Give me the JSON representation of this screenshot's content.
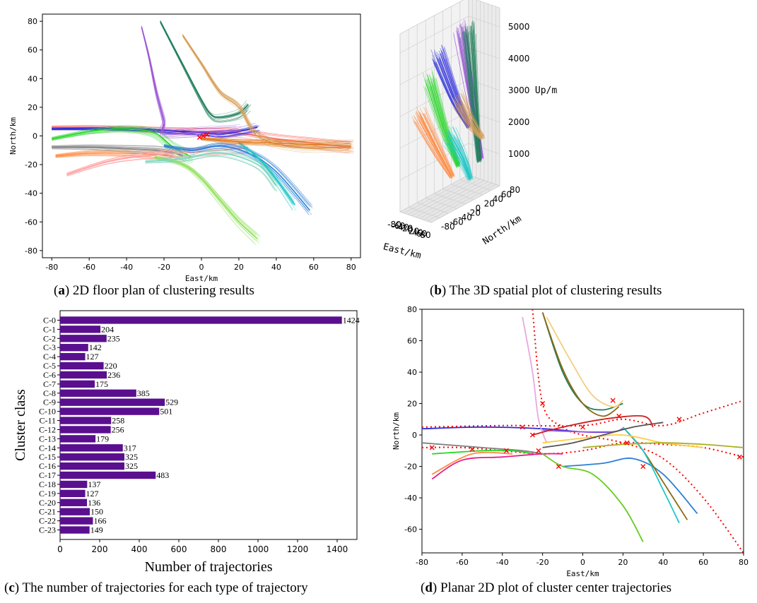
{
  "chart_data": [
    {
      "id": "a",
      "type": "line",
      "xlabel": "East/km",
      "ylabel": "North/km",
      "xlim": [
        -85,
        85
      ],
      "ylim": [
        -85,
        85
      ],
      "xticks": [
        -80,
        -60,
        -40,
        -20,
        0,
        20,
        40,
        60,
        80
      ],
      "yticks": [
        -80,
        -60,
        -40,
        -20,
        0,
        20,
        40,
        60,
        80
      ],
      "caption_letter": "a",
      "caption_text": "2D floor plan of clustering results",
      "series": [
        {
          "color": "#ff6f6f",
          "x": [
            -80,
            -60,
            -40,
            -20,
            0,
            20,
            40,
            60,
            80
          ],
          "y": [
            6,
            6,
            5,
            4,
            3,
            2,
            -2,
            -5,
            -8
          ]
        },
        {
          "color": "#2b2bdc",
          "x": [
            -80,
            -40,
            0,
            10,
            20,
            30
          ],
          "y": [
            5,
            5,
            2,
            1,
            3,
            6
          ]
        },
        {
          "color": "#2bd62b",
          "x": [
            -80,
            -60,
            -40,
            -25,
            -15,
            -5
          ],
          "y": [
            -2,
            3,
            5,
            2,
            -8,
            -15
          ]
        },
        {
          "color": "#ff8c44",
          "x": [
            -78,
            -60,
            -40,
            -25,
            -15
          ],
          "y": [
            -14,
            -12,
            -12,
            -13,
            -14
          ]
        },
        {
          "color": "#7f7f7f",
          "x": [
            -80,
            -60,
            -40,
            -25,
            -15,
            -10
          ],
          "y": [
            -8,
            -8,
            -9,
            -10,
            -12,
            -14
          ]
        },
        {
          "color": "#9b55d6",
          "x": [
            -32,
            -28,
            -24,
            -20,
            -20,
            0,
            20
          ],
          "y": [
            76,
            55,
            30,
            10,
            2,
            3,
            4
          ]
        },
        {
          "color": "#1f7f5a",
          "x": [
            -22,
            -10,
            0,
            5,
            10,
            20,
            25
          ],
          "y": [
            80,
            50,
            25,
            15,
            13,
            16,
            22
          ]
        },
        {
          "color": "#d9a05a",
          "x": [
            -10,
            0,
            10,
            20,
            30,
            50,
            80
          ],
          "y": [
            70,
            50,
            30,
            20,
            0,
            -8,
            -8
          ]
        },
        {
          "color": "#ff9ea0",
          "x": [
            -72,
            -50,
            -30,
            -10,
            10,
            25
          ],
          "y": [
            -27,
            -18,
            -14,
            -12,
            -10,
            -8
          ]
        },
        {
          "color": "#2b7fd6",
          "x": [
            -20,
            -5,
            10,
            25,
            40,
            58
          ],
          "y": [
            -7,
            -10,
            -7,
            -12,
            -25,
            -52
          ]
        },
        {
          "color": "#8fe05a",
          "x": [
            -25,
            -10,
            0,
            10,
            20,
            30
          ],
          "y": [
            -15,
            -20,
            -30,
            -45,
            -60,
            -72
          ]
        },
        {
          "color": "#20c6c6",
          "x": [
            20,
            30,
            40,
            50
          ],
          "y": [
            -5,
            -15,
            -30,
            -48
          ]
        },
        {
          "color": "#e07a1f",
          "x": [
            0,
            20,
            40,
            60,
            80
          ],
          "y": [
            -2,
            -4,
            -5,
            -6,
            -7
          ]
        },
        {
          "color": "#7fd6c0",
          "x": [
            -30,
            -10,
            10,
            30,
            40
          ],
          "y": [
            -18,
            -16,
            -12,
            -20,
            -35
          ]
        }
      ],
      "markers": [
        {
          "color": "#ff0000",
          "x": [
            -1,
            1,
            3
          ],
          "y": [
            -1,
            0,
            1
          ]
        }
      ]
    },
    {
      "id": "b",
      "type": "line",
      "xlabel": "East/km",
      "ylabel": "North/km",
      "zlabel": "Up/m",
      "xticks": [
        -80,
        -60,
        -40,
        -20,
        0,
        20,
        40,
        60,
        80
      ],
      "yticks": [
        -80,
        -60,
        -40,
        -20,
        0,
        20,
        40,
        60,
        80
      ],
      "zticks": [
        1000,
        2000,
        3000,
        4000,
        5000
      ],
      "caption_letter": "b",
      "caption_text": "The 3D spatial plot of clustering results",
      "bundles": [
        {
          "color": "#2b2bdc",
          "east": [
            -60,
            -20,
            10
          ],
          "north": [
            0,
            20,
            40
          ],
          "up": [
            4400,
            3000,
            2000
          ]
        },
        {
          "color": "#ff8c44",
          "east": [
            -70,
            -40,
            -10
          ],
          "north": [
            -40,
            -10,
            10
          ],
          "up": [
            2800,
            1500,
            600
          ]
        },
        {
          "color": "#2bd62b",
          "east": [
            -60,
            -30,
            0
          ],
          "north": [
            -20,
            0,
            20
          ],
          "up": [
            3800,
            2200,
            900
          ]
        },
        {
          "color": "#9b55d6",
          "east": [
            10,
            20,
            30
          ],
          "north": [
            20,
            40,
            60
          ],
          "up": [
            5200,
            3000,
            900
          ]
        },
        {
          "color": "#1f7f5a",
          "east": [
            30,
            35,
            40
          ],
          "north": [
            30,
            40,
            50
          ],
          "up": [
            5200,
            3000,
            900
          ]
        },
        {
          "color": "#d9a05a",
          "east": [
            50,
            65,
            80
          ],
          "north": [
            0,
            20,
            40
          ],
          "up": [
            3200,
            2400,
            1800
          ]
        },
        {
          "color": "#20c6c6",
          "east": [
            0,
            20,
            40
          ],
          "north": [
            0,
            20,
            30
          ],
          "up": [
            2000,
            1200,
            500
          ]
        }
      ]
    },
    {
      "id": "c",
      "type": "bar",
      "orientation": "horizontal",
      "xlabel": "Number of trajectories",
      "ylabel": "Cluster class",
      "xlim": [
        0,
        1500
      ],
      "xticks": [
        0,
        200,
        400,
        600,
        800,
        1000,
        1200,
        1400
      ],
      "bar_color": "#5a0f8f",
      "caption_letter": "c",
      "caption_text": "The number of trajectories for each type of trajectory",
      "categories": [
        "C-0",
        "C-1",
        "C-2",
        "C-3",
        "C-4",
        "C-5",
        "C-6",
        "C-7",
        "C-8",
        "C-9",
        "C-10",
        "C-11",
        "C-12",
        "C-13",
        "C-14",
        "C-15",
        "C-16",
        "C-17",
        "C-18",
        "C-19",
        "C-20",
        "C-21",
        "C-22",
        "C-23"
      ],
      "values": [
        1424,
        204,
        235,
        142,
        127,
        220,
        236,
        175,
        385,
        529,
        501,
        258,
        256,
        179,
        317,
        325,
        325,
        483,
        137,
        127,
        136,
        150,
        166,
        149
      ],
      "value_labels": [
        "1424",
        "204",
        "235",
        "142",
        "127",
        "220",
        "236",
        "175",
        "385",
        "529",
        "501",
        "258",
        "256",
        "179",
        "317",
        "325",
        "325",
        "483",
        "137",
        "127",
        "136",
        "150",
        "166",
        "149"
      ]
    },
    {
      "id": "d",
      "type": "line",
      "xlabel": "East/km",
      "ylabel": "North/km",
      "xlim": [
        -80,
        80
      ],
      "ylim": [
        -75,
        80
      ],
      "xticks": [
        -80,
        -60,
        -40,
        -20,
        0,
        20,
        40,
        60,
        80
      ],
      "yticks": [
        -60,
        -40,
        -20,
        0,
        20,
        40,
        60,
        80
      ],
      "caption_letter": "d",
      "caption_text": "Planar 2D plot of cluster center trajectories",
      "series": [
        {
          "color": "#ff0000",
          "dashed": true,
          "x": [
            -25,
            -20,
            -10,
            0,
            20,
            40,
            60,
            80
          ],
          "y": [
            80,
            20,
            5,
            0,
            -5,
            -15,
            -40,
            -75
          ]
        },
        {
          "color": "#ff0000",
          "dashed": true,
          "x": [
            -80,
            -60,
            -40,
            -20,
            0,
            20,
            40,
            60,
            80
          ],
          "y": [
            -8,
            -8,
            -10,
            -12,
            -10,
            -5,
            -6,
            -8,
            -14
          ]
        },
        {
          "color": "#ff0000",
          "dashed": true,
          "x": [
            -80,
            -40,
            0,
            20,
            40,
            60,
            80
          ],
          "y": [
            5,
            6,
            6,
            10,
            6,
            14,
            22
          ]
        },
        {
          "color": "#2b2bdc",
          "x": [
            -80,
            -50,
            -20,
            0,
            15,
            20
          ],
          "y": [
            4,
            5,
            4,
            2,
            2,
            4
          ]
        },
        {
          "color": "#9b55d6",
          "x": [
            -20,
            0,
            15
          ],
          "y": [
            3,
            2,
            2
          ]
        },
        {
          "color": "#7f7f7f",
          "x": [
            -80,
            -50,
            -30,
            -20
          ],
          "y": [
            -5,
            -8,
            -10,
            -12
          ]
        },
        {
          "color": "#2bd62b",
          "x": [
            -75,
            -50,
            -35,
            -25
          ],
          "y": [
            -12,
            -10,
            -10,
            -12
          ]
        },
        {
          "color": "#ff8c44",
          "x": [
            -75,
            -55,
            -35
          ],
          "y": [
            -25,
            -12,
            -12
          ]
        },
        {
          "color": "#e61e8c",
          "x": [
            -75,
            -60,
            -40,
            -20,
            -10
          ],
          "y": [
            -28,
            -16,
            -14,
            -12,
            -12
          ]
        },
        {
          "color": "#e8a8e0",
          "x": [
            -30,
            -25,
            -22,
            -18
          ],
          "y": [
            75,
            40,
            10,
            -5
          ]
        },
        {
          "color": "#1f7f5a",
          "x": [
            -20,
            -10,
            0,
            10,
            20
          ],
          "y": [
            78,
            40,
            20,
            16,
            20
          ]
        },
        {
          "color": "#f0d080",
          "x": [
            -18,
            -5,
            5,
            15,
            20
          ],
          "y": [
            75,
            45,
            25,
            18,
            22
          ]
        },
        {
          "color": "#8b6914",
          "x": [
            -20,
            -10,
            0,
            10,
            18
          ],
          "y": [
            78,
            42,
            20,
            12,
            18
          ]
        },
        {
          "color": "#2b7fd6",
          "x": [
            -10,
            10,
            25,
            40,
            57
          ],
          "y": [
            -20,
            -18,
            -15,
            -25,
            -50
          ]
        },
        {
          "color": "#8b6914",
          "x": [
            20,
            30,
            40,
            52
          ],
          "y": [
            5,
            -10,
            -30,
            -54
          ]
        },
        {
          "color": "#20c6c6",
          "x": [
            20,
            30,
            40,
            48
          ],
          "y": [
            5,
            -10,
            -35,
            -56
          ]
        },
        {
          "color": "#66cc22",
          "x": [
            -20,
            -10,
            5,
            20,
            30
          ],
          "y": [
            -12,
            -20,
            -25,
            -45,
            -68
          ]
        },
        {
          "color": "#ffcc44",
          "x": [
            -20,
            0,
            20,
            40,
            60
          ],
          "y": [
            -5,
            -2,
            0,
            -5,
            -8
          ]
        },
        {
          "color": "#aab020",
          "x": [
            0,
            20,
            40,
            60,
            80
          ],
          "y": [
            -8,
            -6,
            -5,
            -6,
            -8
          ]
        },
        {
          "color": "#555555",
          "x": [
            -20,
            -5,
            10,
            25,
            40
          ],
          "y": [
            -8,
            -5,
            0,
            5,
            8
          ]
        },
        {
          "color": "#cc2222",
          "x": [
            -25,
            -10,
            10,
            30,
            35
          ],
          "y": [
            0,
            5,
            10,
            12,
            5
          ]
        }
      ],
      "markers": [
        {
          "color": "#ff0000",
          "x": [
            -75,
            -55,
            -38,
            -30,
            -25,
            -22,
            -20,
            -12,
            0,
            15,
            18,
            22,
            30,
            48,
            78
          ],
          "y": [
            -8,
            -9,
            -10,
            5,
            0,
            -10,
            20,
            -20,
            5,
            22,
            12,
            -5,
            -20,
            10,
            -14
          ]
        }
      ]
    }
  ]
}
